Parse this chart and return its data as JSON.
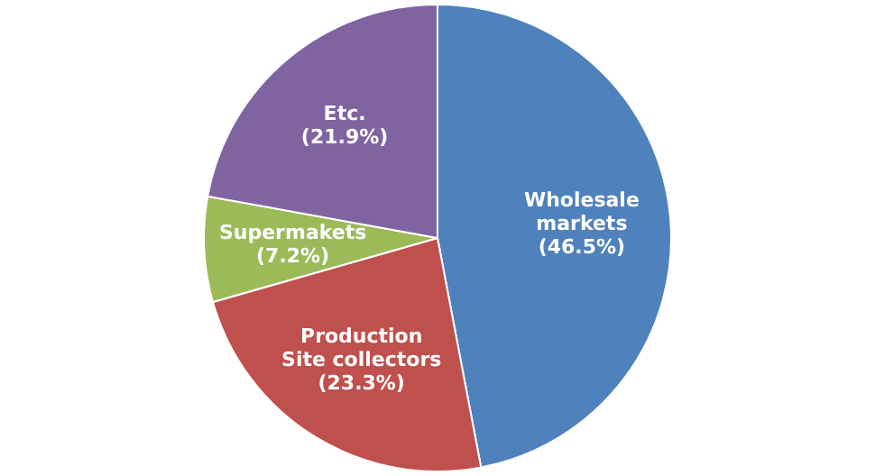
{
  "chart_data": {
    "type": "pie",
    "categories": [
      "Wholesale markets",
      "Production Site collectors",
      "Supermakets",
      "Etc."
    ],
    "values": [
      46.5,
      23.3,
      7.2,
      21.9
    ],
    "colors": [
      "#4f81bd",
      "#c0504d",
      "#9bbb59",
      "#8064a2"
    ],
    "value_labels": [
      "(46.5%)",
      "(23.3%)",
      "(7.2%)",
      "(21.9%)"
    ],
    "legend": false
  }
}
